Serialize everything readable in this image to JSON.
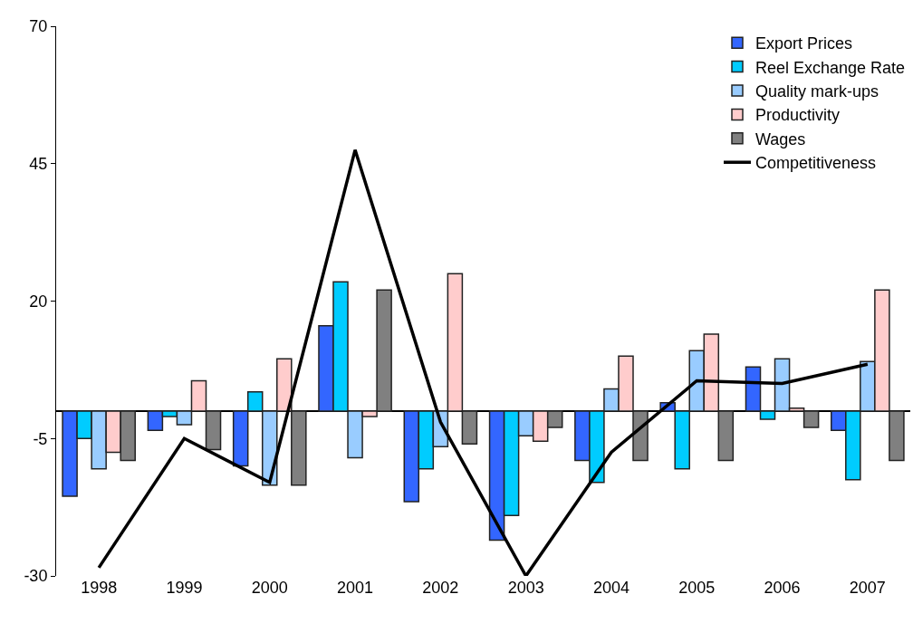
{
  "chart_data": {
    "type": "bar",
    "categories": [
      "1998",
      "1999",
      "2000",
      "2001",
      "2002",
      "2003",
      "2004",
      "2005",
      "2006",
      "2007"
    ],
    "series": [
      {
        "name": "Export Prices",
        "color": "#3366ff",
        "values": [
          -15.5,
          -3.5,
          -10,
          15.5,
          -16.5,
          -23.5,
          -9,
          1.5,
          8,
          -3.5
        ]
      },
      {
        "name": "Reel Exchange Rate",
        "color": "#00ccff",
        "values": [
          -5,
          -1,
          3.5,
          23.5,
          -10.5,
          -19,
          -13,
          -10.5,
          -1.5,
          -12.5
        ]
      },
      {
        "name": "Quality mark-ups",
        "color": "#99ccff",
        "values": [
          -10.5,
          -2.5,
          -13.5,
          -8.5,
          -6.5,
          -4.5,
          4,
          11,
          9.5,
          9
        ]
      },
      {
        "name": "Productivity",
        "color": "#ffcccc",
        "values": [
          -7.5,
          5.5,
          9.5,
          -1,
          25,
          -5.5,
          10,
          14,
          0.5,
          22
        ]
      },
      {
        "name": "Wages",
        "color": "#808080",
        "values": [
          -9,
          -7,
          -13.5,
          22,
          -6,
          -3,
          -9,
          -9,
          -3,
          -9
        ]
      },
      {
        "name": "Competitiveness",
        "type": "line",
        "color": "#000000",
        "values": [
          -28.5,
          -5,
          -13,
          47.5,
          -2,
          -30,
          -7.5,
          5.5,
          5,
          8.5
        ]
      }
    ],
    "ylim": [
      -30,
      70
    ],
    "yticks": [
      -30,
      -5,
      20,
      45,
      70
    ],
    "legend": "top right",
    "marker": "none",
    "line_style": "solid"
  }
}
